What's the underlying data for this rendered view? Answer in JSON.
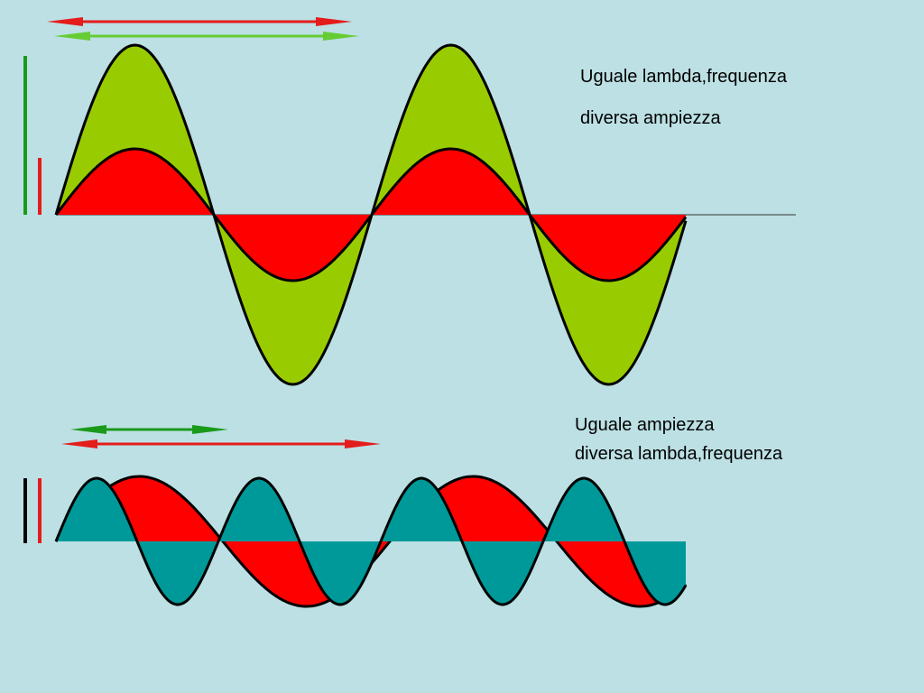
{
  "top_caption": {
    "line1": "Uguale lambda,frequenza",
    "line2": "diversa ampiezza"
  },
  "bottom_caption": {
    "line1": "Uguale ampiezza",
    "line2": "diversa lambda,frequenza"
  }
}
